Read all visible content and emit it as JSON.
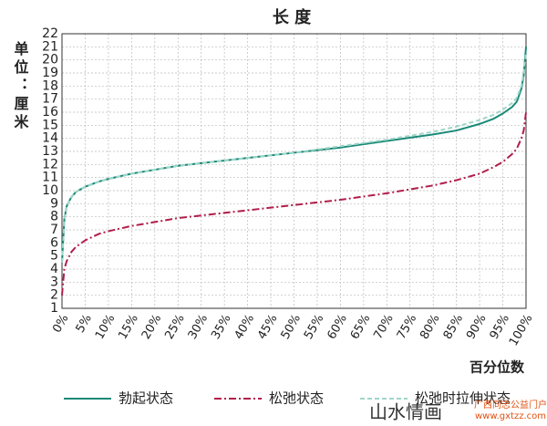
{
  "chart_data": {
    "type": "line",
    "title": "长 度",
    "ylabel": "单位：厘米",
    "xlabel": "百分位数",
    "x": [
      0,
      0.5,
      1,
      2,
      3,
      5,
      8,
      10,
      15,
      20,
      25,
      30,
      40,
      50,
      60,
      70,
      80,
      85,
      90,
      93,
      95,
      97,
      98,
      99,
      99.5,
      100
    ],
    "series": [
      {
        "name": "勃起状态",
        "color": "#1a8a78",
        "style": "solid",
        "values": [
          4.5,
          7.8,
          8.8,
          9.5,
          9.9,
          10.3,
          10.7,
          10.9,
          11.3,
          11.6,
          11.9,
          12.1,
          12.5,
          12.9,
          13.3,
          13.8,
          14.3,
          14.6,
          15.1,
          15.5,
          15.9,
          16.4,
          16.8,
          17.8,
          18.8,
          21
        ]
      },
      {
        "name": "松弛状态",
        "color": "#b01e4a",
        "style": "dashdot",
        "values": [
          2,
          4,
          4.6,
          5.3,
          5.7,
          6.2,
          6.7,
          6.9,
          7.3,
          7.6,
          7.9,
          8.1,
          8.5,
          8.9,
          9.3,
          9.8,
          10.4,
          10.8,
          11.3,
          11.8,
          12.2,
          12.8,
          13.2,
          14,
          14.6,
          16
        ]
      },
      {
        "name": "松弛时拉伸状态",
        "color": "#9fd6c8",
        "style": "dashed",
        "values": [
          4.5,
          7.8,
          8.8,
          9.5,
          9.9,
          10.3,
          10.7,
          10.9,
          11.3,
          11.6,
          11.9,
          12.1,
          12.5,
          12.9,
          13.4,
          13.9,
          14.5,
          14.9,
          15.4,
          15.8,
          16.2,
          16.7,
          17.1,
          18,
          19,
          20.5
        ]
      }
    ],
    "xlim": [
      0,
      100
    ],
    "xticks": [
      {
        "value": 0,
        "label": "0%"
      },
      {
        "value": 5,
        "label": "5%"
      },
      {
        "value": 10,
        "label": "10%"
      },
      {
        "value": 15,
        "label": "15%"
      },
      {
        "value": 20,
        "label": "20%"
      },
      {
        "value": 25,
        "label": "25%"
      },
      {
        "value": 30,
        "label": "30%"
      },
      {
        "value": 35,
        "label": "35%"
      },
      {
        "value": 40,
        "label": "40%"
      },
      {
        "value": 45,
        "label": "45%"
      },
      {
        "value": 50,
        "label": "50%"
      },
      {
        "value": 55,
        "label": "55%"
      },
      {
        "value": 60,
        "label": "60%"
      },
      {
        "value": 65,
        "label": "65%"
      },
      {
        "value": 70,
        "label": "70%"
      },
      {
        "value": 75,
        "label": "75%"
      },
      {
        "value": 80,
        "label": "80%"
      },
      {
        "value": 85,
        "label": "85%"
      },
      {
        "value": 90,
        "label": "90%"
      },
      {
        "value": 95,
        "label": "95%"
      },
      {
        "value": 100,
        "label": "100%"
      }
    ],
    "ylim": [
      1,
      22
    ],
    "yticks": [
      1,
      2,
      3,
      4,
      5,
      6,
      7,
      8,
      9,
      10,
      11,
      12,
      13,
      14,
      15,
      16,
      17,
      18,
      19,
      20,
      21,
      22
    ],
    "grid": true,
    "legend": "bottom"
  },
  "watermark": {
    "text": "山水情画",
    "site": "广西同志公益门户",
    "url": "www.gxtzz.com"
  }
}
